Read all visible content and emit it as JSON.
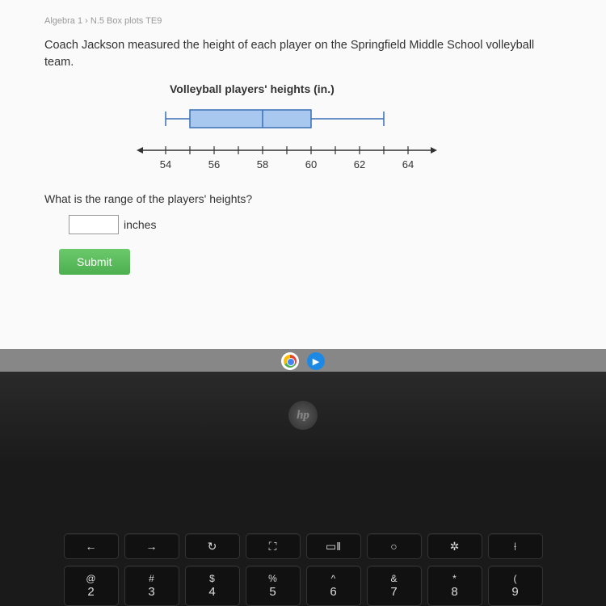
{
  "breadcrumb": "Algebra 1 › N.5 Box plots TE9",
  "problem": "Coach Jackson measured the height of each player on the Springfield Middle School volleyball team.",
  "chart": {
    "title": "Volleyball players' heights (in.)",
    "type": "boxplot",
    "x_min": 53,
    "x_max": 65,
    "tick_start": 54,
    "tick_end": 64,
    "tick_step": 1,
    "label_step": 2,
    "min_whisker": 54,
    "q1": 55,
    "median": 58,
    "q3": 60,
    "max_whisker": 63,
    "box_fill": "#a8c8f0",
    "box_stroke": "#3b6fb5",
    "axis_color": "#333333",
    "axis_fontsize": 13,
    "whisker_color": "#3b6fb5"
  },
  "question": "What is the range of the players' heights?",
  "answer_value": "",
  "unit": "inches",
  "submit_label": "Submit",
  "taskbar": {
    "icons": [
      "chrome",
      "app"
    ]
  },
  "laptop": {
    "brand": "hp"
  },
  "keyboard": {
    "fn_row": [
      "←",
      "→",
      "↻",
      "⛶",
      "▭‖",
      "○",
      "✲",
      "⟊"
    ],
    "num_row": [
      {
        "sym": "@",
        "num": "2"
      },
      {
        "sym": "#",
        "num": "3"
      },
      {
        "sym": "$",
        "num": "4"
      },
      {
        "sym": "%",
        "num": "5"
      },
      {
        "sym": "^",
        "num": "6"
      },
      {
        "sym": "&",
        "num": "7"
      },
      {
        "sym": "*",
        "num": "8"
      },
      {
        "sym": "(",
        "num": "9"
      }
    ]
  }
}
